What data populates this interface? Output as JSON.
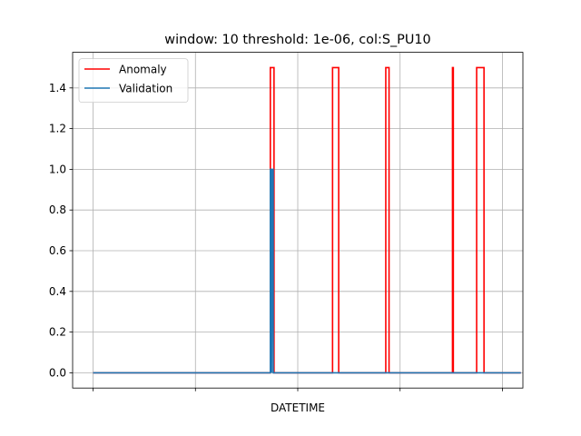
{
  "chart_data": {
    "type": "line",
    "title": "window: 10 threshold: 1e-06, col:S_PU10",
    "xlabel": "DATETIME",
    "ylabel": "",
    "xlim": [
      -0.05,
      1.05
    ],
    "ylim": [
      -0.075,
      1.575
    ],
    "x_tick_positions": [
      0.0,
      0.25,
      0.5,
      0.75,
      1.0
    ],
    "y_ticks": [
      0.0,
      0.2,
      0.4,
      0.6,
      0.8,
      1.0,
      1.2,
      1.4
    ],
    "y_tick_labels": [
      "0.0",
      "0.2",
      "0.4",
      "0.6",
      "0.8",
      "1.0",
      "1.2",
      "1.4"
    ],
    "grid": true,
    "legend_position": "top-left",
    "series": [
      {
        "name": "Anomaly",
        "color": "#ff0000",
        "x": [
          0.0,
          0.433,
          0.433,
          0.442,
          0.442,
          0.585,
          0.585,
          0.6,
          0.6,
          0.715,
          0.715,
          0.723,
          0.723,
          0.878,
          0.878,
          0.88,
          0.88,
          0.937,
          0.937,
          0.955,
          0.955,
          1.045
        ],
        "y": [
          0.0,
          0.0,
          1.5,
          1.5,
          0.0,
          0.0,
          1.5,
          1.5,
          0.0,
          0.0,
          1.5,
          1.5,
          0.0,
          0.0,
          1.5,
          1.5,
          0.0,
          0.0,
          1.5,
          1.5,
          0.0,
          0.0
        ]
      },
      {
        "name": "Validation",
        "color": "#1f77b4",
        "x": [
          0.0,
          0.433,
          0.433,
          0.436,
          0.436,
          0.438,
          0.438,
          0.44,
          0.44,
          1.045
        ],
        "y": [
          0.0,
          0.0,
          1.0,
          1.0,
          0.0,
          1.0,
          1.0,
          1.0,
          0.0,
          0.0
        ]
      }
    ]
  }
}
